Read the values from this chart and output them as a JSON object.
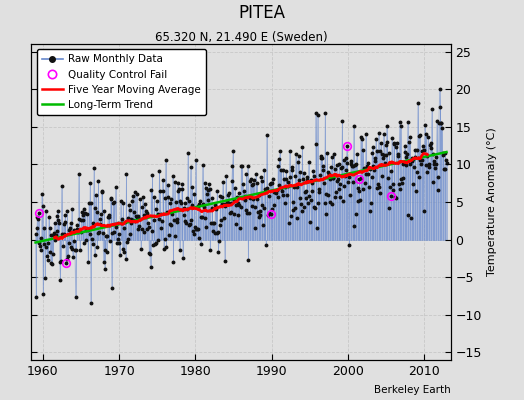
{
  "title": "PITEA",
  "subtitle": "65.320 N, 21.490 E (Sweden)",
  "ylabel": "Temperature Anomaly (°C)",
  "xlim": [
    1958.5,
    2013.5
  ],
  "ylim": [
    -16,
    26
  ],
  "yticks": [
    -15,
    -10,
    -5,
    0,
    5,
    10,
    15,
    20,
    25
  ],
  "xticks": [
    1960,
    1970,
    1980,
    1990,
    2000,
    2010
  ],
  "background_color": "#e0e0e0",
  "grid_color": "#c8c8c8",
  "raw_line_color": "#6688cc",
  "raw_marker_color": "#111111",
  "moving_avg_color": "#ff0000",
  "trend_color": "#00bb00",
  "qc_fail_color": "#ff00ff",
  "watermark": "Berkeley Earth",
  "seed": 17,
  "n_years": 54,
  "start_year": 1959,
  "trend_slope": 0.018,
  "trend_intercept": -0.3,
  "noise_std": 2.2,
  "qc_fail_indices": [
    5,
    48,
    370,
    490,
    510,
    560
  ]
}
